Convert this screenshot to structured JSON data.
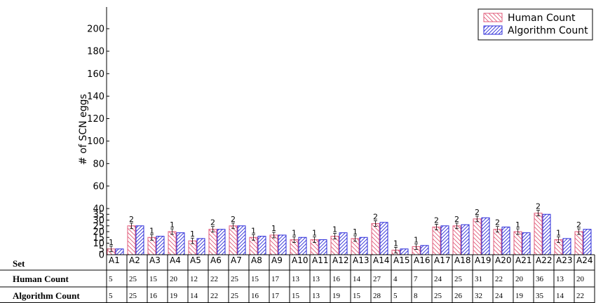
{
  "chart_data": {
    "type": "bar",
    "ylabel": "# of SCN eggs",
    "ylim": [
      0,
      220
    ],
    "yticks": [
      0,
      5,
      10,
      15,
      20,
      25,
      30,
      35,
      40,
      60,
      80,
      100,
      120,
      140,
      160,
      180,
      200
    ],
    "legend_position": "top-right",
    "categories": [
      "A1",
      "A2",
      "A3",
      "A4",
      "A5",
      "A6",
      "A7",
      "A8",
      "A9",
      "A10",
      "A11",
      "A12",
      "A13",
      "A14",
      "A15",
      "A16",
      "A17",
      "A18",
      "A19",
      "A20",
      "A21",
      "A22",
      "A23",
      "A24"
    ],
    "series": [
      {
        "name": "Human Count",
        "color": "#e05a78",
        "hatch": "backslash",
        "values": [
          5,
          25,
          15,
          20,
          12,
          22,
          25,
          15,
          17,
          13,
          13,
          16,
          14,
          27,
          4,
          7,
          24,
          25,
          31,
          22,
          20,
          36,
          13,
          20
        ]
      },
      {
        "name": "Algorithm Count",
        "color": "#2a2ad8",
        "hatch": "slash",
        "values": [
          5,
          25,
          16,
          19,
          14,
          22,
          25,
          16,
          17,
          15,
          13,
          19,
          15,
          28,
          5,
          8,
          25,
          26,
          32,
          24,
          19,
          35,
          14,
          22
        ]
      }
    ],
    "error_labels": [
      "1",
      "2",
      "1",
      "1",
      "1",
      "2",
      "2",
      "1",
      "1",
      "1",
      "1",
      "1",
      "1",
      "2",
      "1",
      "1",
      "2",
      "2",
      "2",
      "2",
      "1",
      "2",
      "1",
      "2"
    ],
    "table": {
      "header": "Set",
      "row_labels": [
        "Human Count",
        "Algorithm Count"
      ]
    }
  }
}
